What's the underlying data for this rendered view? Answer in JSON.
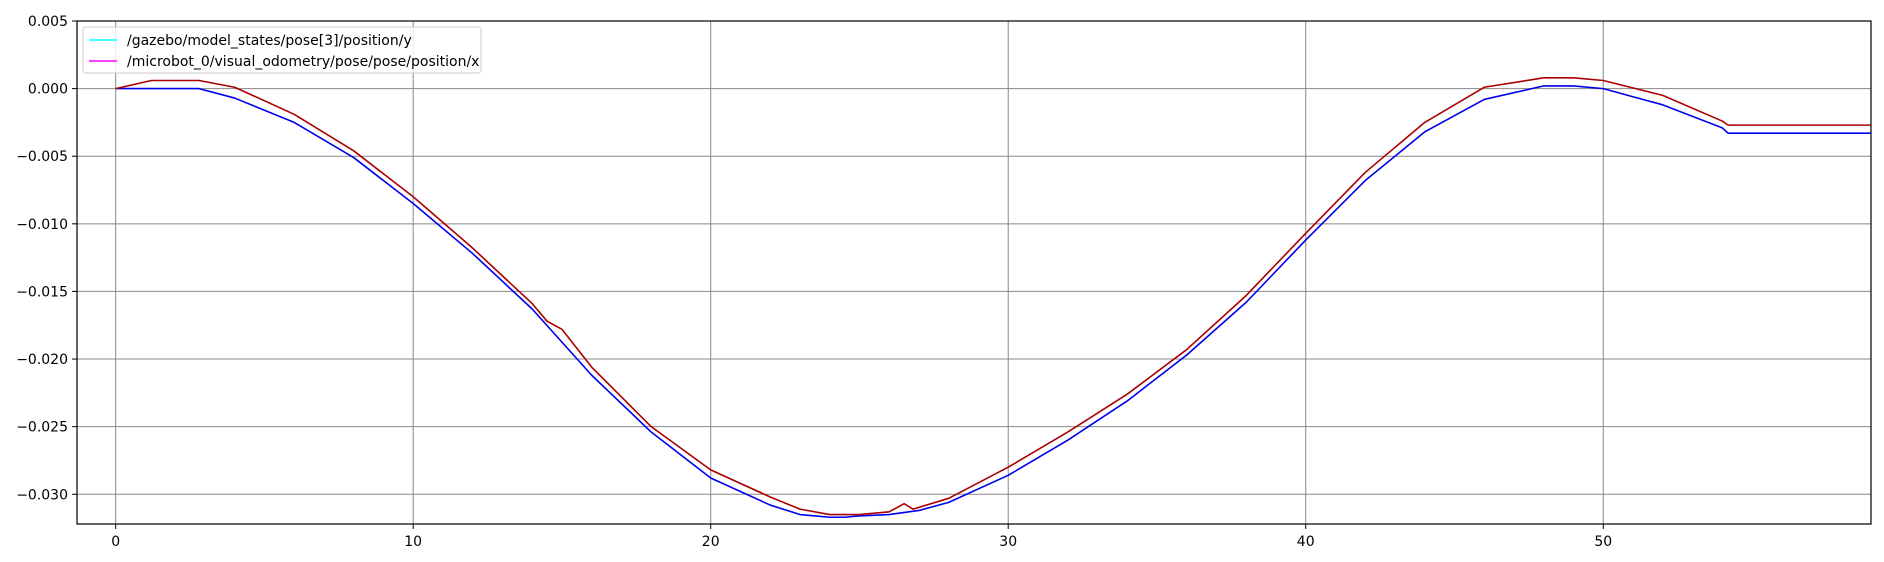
{
  "colors": {
    "background": "#ffffff",
    "axes": "#000000",
    "grid": "#888888",
    "legend_border": "#cccccc",
    "legend_swatch_1": "#00ffff",
    "legend_swatch_2": "#ff00ff",
    "plotted_line_1": "#0000ee",
    "plotted_line_2": "#aa0000"
  },
  "chart_data": {
    "type": "line",
    "title": "",
    "xlabel": "",
    "ylabel": "",
    "xlim": [
      -1.3,
      59
    ],
    "ylim": [
      -0.0322,
      0.005
    ],
    "grid": true,
    "legend_position": "top-left",
    "x_ticks": [
      0,
      10,
      20,
      30,
      40,
      50
    ],
    "x_tick_labels": [
      "0",
      "10",
      "20",
      "30",
      "40",
      "50"
    ],
    "y_ticks": [
      0.005,
      0.0,
      -0.005,
      -0.01,
      -0.015,
      -0.02,
      -0.025,
      -0.03
    ],
    "y_tick_labels": [
      "0.005",
      "0.000",
      "−0.005",
      "−0.010",
      "−0.015",
      "−0.020",
      "−0.025",
      "−0.030"
    ],
    "series": [
      {
        "name": "/gazebo/model_states/pose[3]/position/y",
        "legend_color": "#00ffff",
        "line_color": "#0000ee",
        "x": [
          0,
          1,
          2,
          2.8,
          4,
          6,
          8,
          10,
          12,
          14,
          16,
          18,
          20,
          22,
          23,
          24,
          24.5,
          25,
          26,
          27,
          28,
          30,
          32,
          34,
          36,
          38,
          40,
          42,
          44,
          46,
          48,
          49,
          50,
          52,
          54,
          54.2,
          56,
          58,
          59
        ],
        "y": [
          0.0,
          0.0,
          0.0,
          0.0,
          -0.0007,
          -0.0025,
          -0.0051,
          -0.0085,
          -0.0122,
          -0.0163,
          -0.0212,
          -0.0254,
          -0.0288,
          -0.0308,
          -0.0315,
          -0.0317,
          -0.0317,
          -0.0316,
          -0.0315,
          -0.0312,
          -0.0306,
          -0.0286,
          -0.026,
          -0.0231,
          -0.0197,
          -0.0158,
          -0.0112,
          -0.0068,
          -0.0032,
          -0.0008,
          0.0002,
          0.0002,
          0.0,
          -0.0012,
          -0.0029,
          -0.0033,
          -0.0033,
          -0.0033,
          -0.0033
        ]
      },
      {
        "name": "/microbot_0/visual_odometry/pose/pose/position/x",
        "legend_color": "#ff00ff",
        "line_color": "#aa0000",
        "x": [
          0,
          1.2,
          2,
          2.8,
          4,
          6,
          8,
          10,
          12,
          14,
          14.5,
          15,
          16,
          18,
          20,
          22,
          23,
          24,
          24.5,
          25,
          26,
          26.5,
          26.8,
          28,
          30,
          32,
          34,
          36,
          38,
          40,
          42,
          44,
          46,
          48,
          49,
          50,
          52,
          54,
          54.2,
          56,
          58,
          59
        ],
        "y": [
          0.0,
          0.0006,
          0.0006,
          0.0006,
          0.0001,
          -0.0019,
          -0.0046,
          -0.008,
          -0.0118,
          -0.0159,
          -0.0172,
          -0.0178,
          -0.0206,
          -0.025,
          -0.0282,
          -0.0302,
          -0.0311,
          -0.0315,
          -0.0315,
          -0.0315,
          -0.0313,
          -0.0307,
          -0.0311,
          -0.0303,
          -0.028,
          -0.0254,
          -0.0226,
          -0.0193,
          -0.0153,
          -0.0107,
          -0.0062,
          -0.0025,
          0.0001,
          0.0008,
          0.0008,
          0.0006,
          -0.0005,
          -0.0024,
          -0.0027,
          -0.0027,
          -0.0027,
          -0.0027
        ]
      }
    ]
  }
}
